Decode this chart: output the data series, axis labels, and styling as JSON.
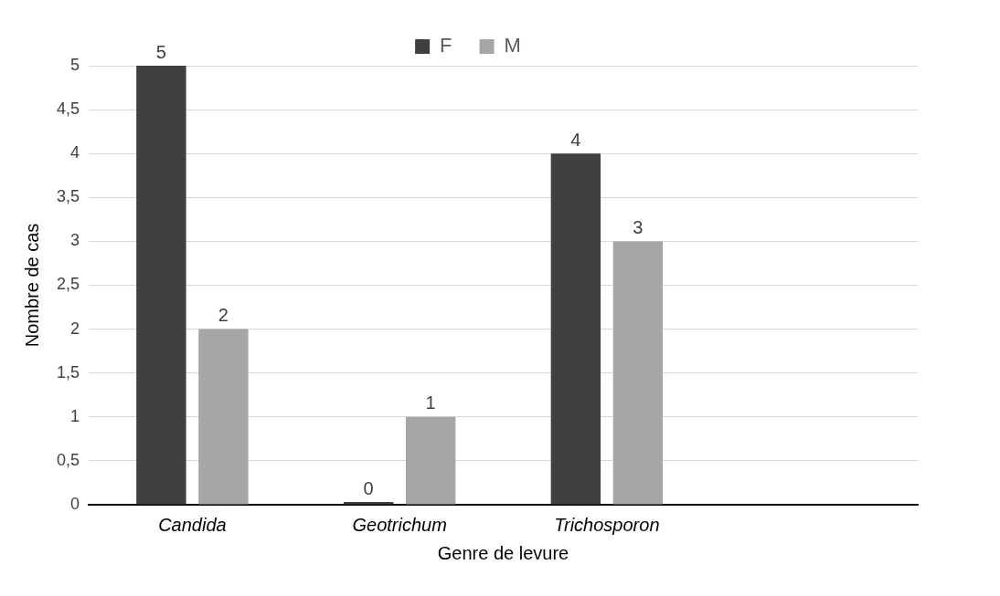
{
  "chart_data": {
    "type": "bar",
    "xlabel": "Genre de levure",
    "ylabel": "Nombre de cas",
    "categories": [
      "Candida",
      "Geotrichum",
      "Trichosporon",
      null
    ],
    "series": [
      {
        "name": "F",
        "color": "#404040",
        "values": [
          5,
          0,
          4,
          null
        ]
      },
      {
        "name": "M",
        "color": "#a6a6a6",
        "values": [
          2,
          1,
          3,
          null
        ]
      }
    ],
    "ylim": [
      0,
      5
    ],
    "yticks": [
      0,
      {
        "value": 0.5,
        "label": "0,5"
      },
      1,
      {
        "value": 1.5,
        "label": "1,5"
      },
      2,
      {
        "value": 2.5,
        "label": "2,5"
      },
      3,
      {
        "value": 3.5,
        "label": "3,5"
      },
      4,
      {
        "value": 4.5,
        "label": "4,5"
      },
      5
    ],
    "grid": "y",
    "legend": "top",
    "data_labels": true
  }
}
